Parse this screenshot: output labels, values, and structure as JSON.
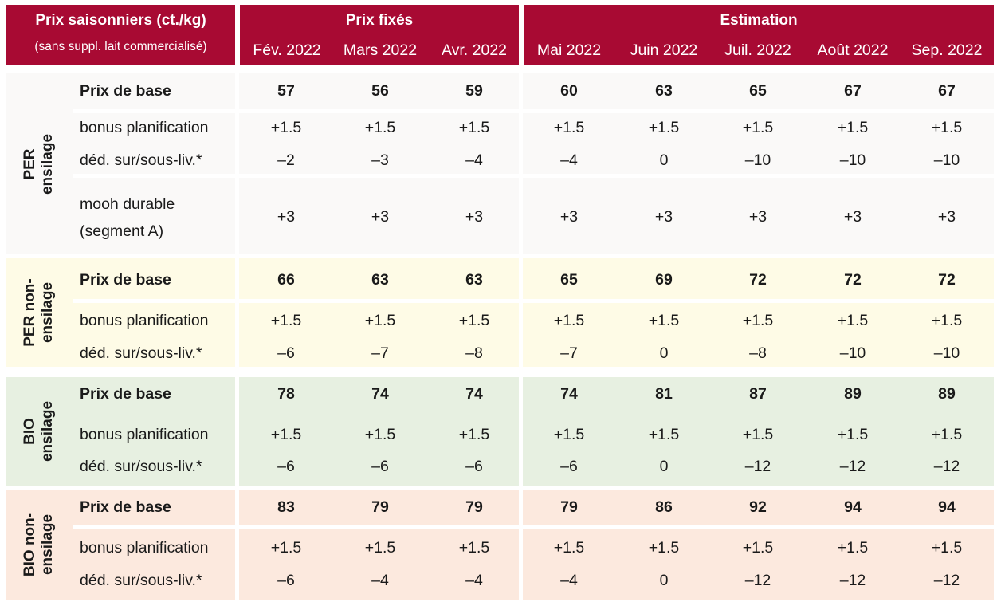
{
  "header": {
    "corner_title": "Prix saisonniers (ct./kg)",
    "corner_subtitle": "(sans suppl. lait commercialisé)",
    "fixed_label": "Prix fixés",
    "estimate_label": "Estimation",
    "months": [
      "Fév. 2022",
      "Mars 2022",
      "Avr. 2022",
      "Mai 2022",
      "Juin 2022",
      "Juil. 2022",
      "Août 2022",
      "Sep. 2022"
    ]
  },
  "groups": [
    {
      "label_line1": "PER",
      "label_line2": "ensilage",
      "bg_color": "#faf9f8",
      "rows": [
        {
          "label": "Prix de base",
          "values": [
            "57",
            "56",
            "59",
            "60",
            "63",
            "65",
            "67",
            "67"
          ]
        },
        {
          "label": "bonus planification",
          "values": [
            "+1.5",
            "+1.5",
            "+1.5",
            "+1.5",
            "+1.5",
            "+1.5",
            "+1.5",
            "+1.5"
          ]
        },
        {
          "label": "déd. sur/sous-liv.*",
          "values": [
            "–2",
            "–3",
            "–4",
            "–4",
            "0",
            "–10",
            "–10",
            "–10"
          ]
        },
        {
          "label_line1": "mooh durable",
          "label_line2": "(segment A)",
          "values": [
            "+3",
            "+3",
            "+3",
            "+3",
            "+3",
            "+3",
            "+3",
            "+3"
          ]
        }
      ]
    },
    {
      "label_line1": "PER non-",
      "label_line2": "ensilage",
      "bg_color": "#fefbe6",
      "rows": [
        {
          "label": "Prix de base",
          "values": [
            "66",
            "63",
            "63",
            "65",
            "69",
            "72",
            "72",
            "72"
          ]
        },
        {
          "label": "bonus planification",
          "values": [
            "+1.5",
            "+1.5",
            "+1.5",
            "+1.5",
            "+1.5",
            "+1.5",
            "+1.5",
            "+1.5"
          ]
        },
        {
          "label": "déd. sur/sous-liv.*",
          "values": [
            "–6",
            "–7",
            "–8",
            "–7",
            "0",
            "–8",
            "–10",
            "–10"
          ]
        }
      ]
    },
    {
      "label_line1": "BIO",
      "label_line2": "ensilage",
      "bg_color": "#e7f0e1",
      "rows": [
        {
          "label": "Prix de base",
          "values": [
            "78",
            "74",
            "74",
            "74",
            "81",
            "87",
            "89",
            "89"
          ]
        },
        {
          "label": "bonus planification",
          "values": [
            "+1.5",
            "+1.5",
            "+1.5",
            "+1.5",
            "+1.5",
            "+1.5",
            "+1.5",
            "+1.5"
          ]
        },
        {
          "label": "déd. sur/sous-liv.*",
          "values": [
            "–6",
            "–6",
            "–6",
            "–6",
            "0",
            "–12",
            "–12",
            "–12"
          ]
        }
      ]
    },
    {
      "label_line1": "BIO non-",
      "label_line2": "ensilage",
      "bg_color": "#fce9de",
      "rows": [
        {
          "label": "Prix de base",
          "values": [
            "83",
            "79",
            "79",
            "79",
            "86",
            "92",
            "94",
            "94"
          ]
        },
        {
          "label": "bonus planification",
          "values": [
            "+1.5",
            "+1.5",
            "+1.5",
            "+1.5",
            "+1.5",
            "+1.5",
            "+1.5",
            "+1.5"
          ]
        },
        {
          "label": "déd. sur/sous-liv.*",
          "values": [
            "–6",
            "–4",
            "–4",
            "–4",
            "0",
            "–12",
            "–12",
            "–12"
          ]
        }
      ]
    }
  ]
}
